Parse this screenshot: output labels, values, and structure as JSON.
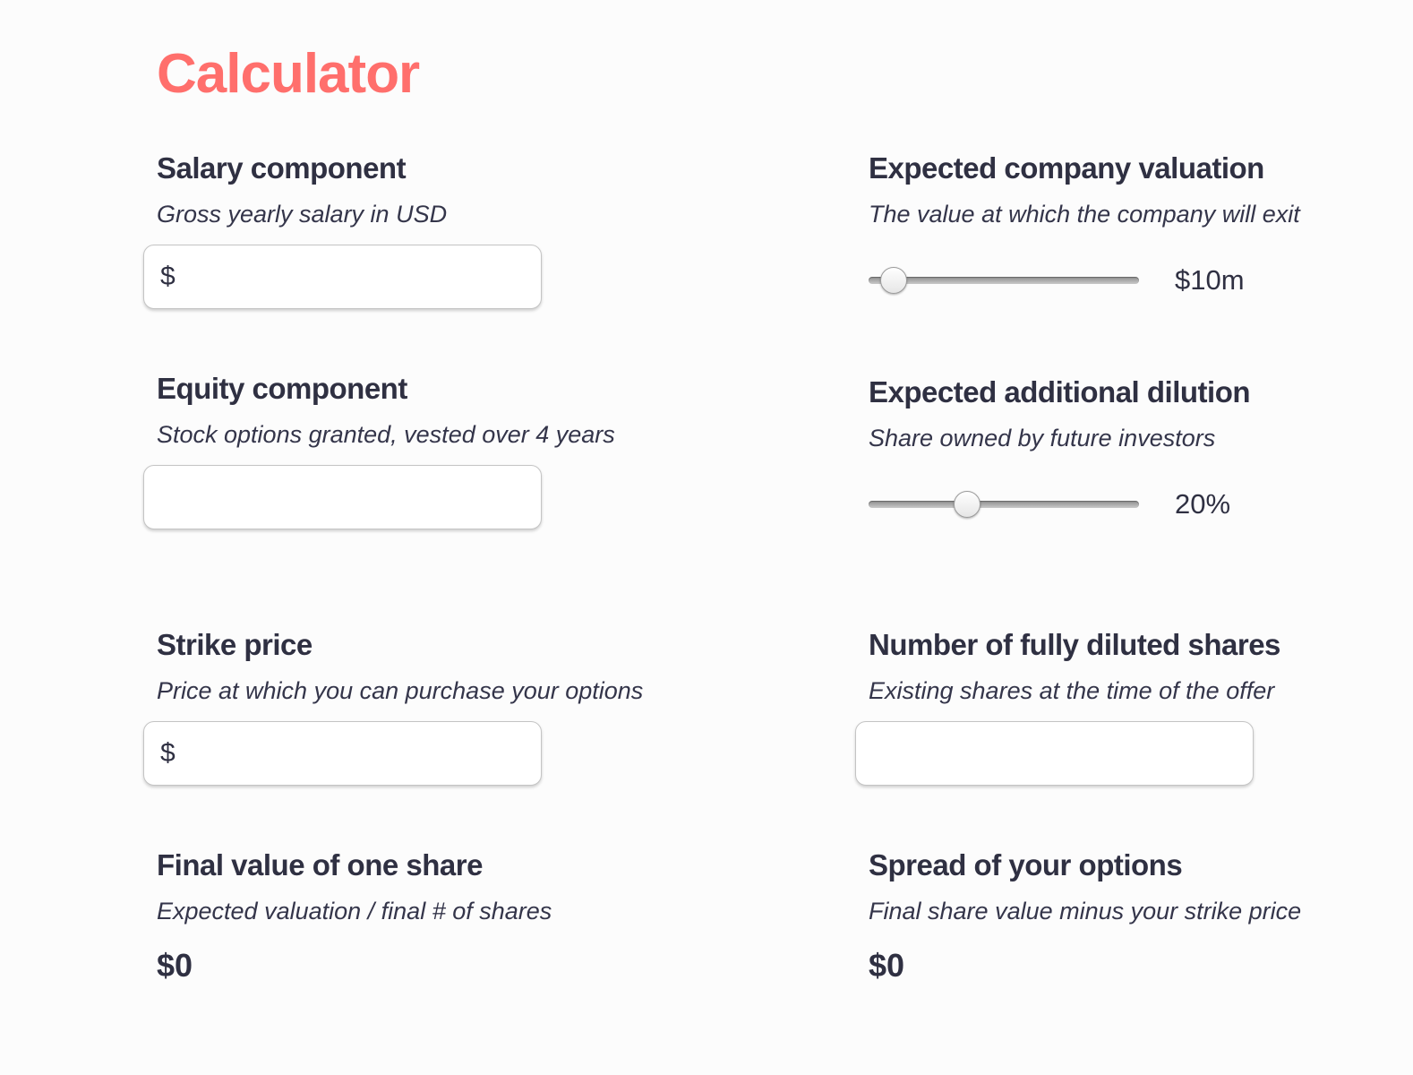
{
  "title": "Calculator",
  "accent_color": "#ff6f6c",
  "left": {
    "salary": {
      "heading": "Salary component",
      "sublabel": "Gross yearly salary in USD",
      "prefix": "$",
      "value": ""
    },
    "equity": {
      "heading": "Equity component",
      "sublabel": "Stock options granted, vested over 4 years",
      "value": ""
    },
    "strike": {
      "heading": "Strike price",
      "sublabel": "Price at which you can purchase your options",
      "prefix": "$",
      "value": ""
    },
    "final_value": {
      "heading": "Final value of one share",
      "sublabel": "Expected valuation / final # of shares",
      "value": "$0"
    }
  },
  "right": {
    "valuation": {
      "heading": "Expected company valuation",
      "sublabel": "The value at which the company will exit",
      "value_label": "$10m",
      "position": 0.09
    },
    "dilution": {
      "heading": "Expected additional dilution",
      "sublabel": "Share owned by future investors",
      "value_label": "20%",
      "position": 0.36
    },
    "shares": {
      "heading": "Number of fully diluted shares",
      "sublabel": "Existing shares at the time of the offer",
      "value": ""
    },
    "spread": {
      "heading": "Spread of your options",
      "sublabel": "Final share value minus your strike price",
      "value": "$0"
    }
  }
}
